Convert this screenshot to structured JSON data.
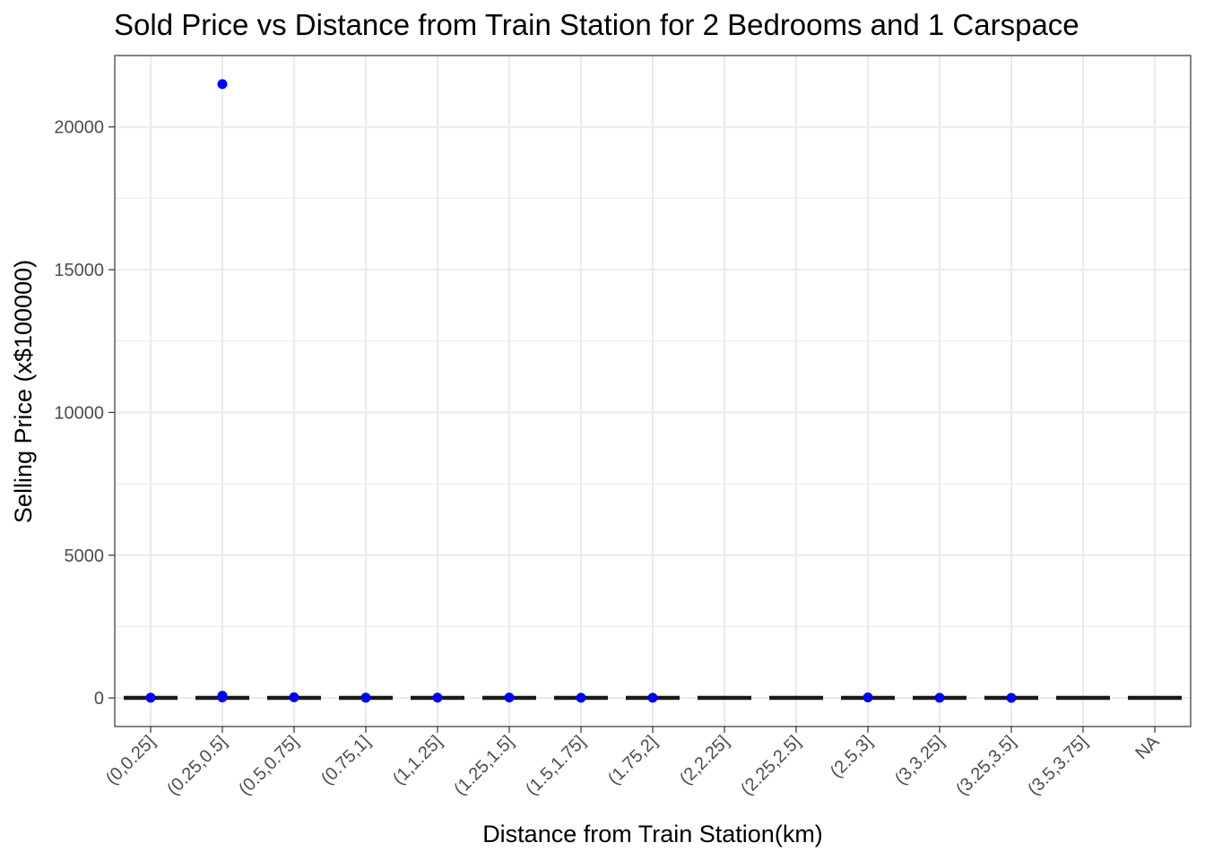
{
  "colors": {
    "point": "#0000ff",
    "box": "#1a1a1a",
    "grid": "#ebebeb",
    "panel_border": "#333333"
  },
  "chart_data": {
    "type": "boxplot",
    "title": "Sold Price vs Distance from Train Station for 2 Bedrooms and 1 Carspace",
    "xlabel": "Distance from Train Station(km)",
    "ylabel": "Selling Price (x$100000)",
    "ylim": [
      -1000,
      22500
    ],
    "yticks": [
      0,
      5000,
      10000,
      15000,
      20000
    ],
    "grid": true,
    "categories": [
      "(0,0.25]",
      "(0.25,0.5]",
      "(0.5,0.75]",
      "(0.75,1]",
      "(1,1.25]",
      "(1.25,1.5]",
      "(1.5,1.75]",
      "(1.75,2]",
      "(2,2.25]",
      "(2.25,2.5]",
      "(2.5,3]",
      "(3,3.25]",
      "(3.25,3.5]",
      "(3.5,3.75]",
      "NA"
    ],
    "box_medians": [
      5,
      5,
      5,
      5,
      5,
      5,
      5,
      5,
      5,
      5,
      5,
      5,
      5,
      5,
      5
    ],
    "outliers": [
      {
        "category": "(0,0.25]",
        "value": 10
      },
      {
        "category": "(0.25,0.5]",
        "value": 21500
      },
      {
        "category": "(0.25,0.5]",
        "value": 80
      },
      {
        "category": "(0.25,0.5]",
        "value": 20
      },
      {
        "category": "(0.5,0.75]",
        "value": 25
      },
      {
        "category": "(0.75,1]",
        "value": 10
      },
      {
        "category": "(1,1.25]",
        "value": 12
      },
      {
        "category": "(1.25,1.5]",
        "value": 15
      },
      {
        "category": "(1.5,1.75]",
        "value": 8
      },
      {
        "category": "(1.75,2]",
        "value": 8
      },
      {
        "category": "(2.5,3]",
        "value": 20
      },
      {
        "category": "(3,3.25]",
        "value": 8
      },
      {
        "category": "(3.25,3.5]",
        "value": 5
      }
    ]
  }
}
